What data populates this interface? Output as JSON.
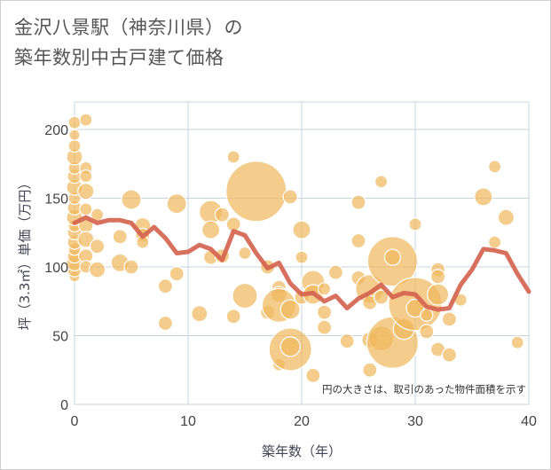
{
  "header": {
    "title_line1": "金沢八景駅（神奈川県）の",
    "title_line2": "築年数別中古戸建て価格"
  },
  "chart_data": {
    "type": "scatter",
    "xlabel": "築年数（年）",
    "ylabel": "坪（3.3㎡）単価（万円）",
    "xlim": [
      0,
      40
    ],
    "ylim": [
      0,
      220
    ],
    "xticks": [
      "0",
      "10",
      "20",
      "30",
      "40"
    ],
    "yticks": [
      "0",
      "50",
      "100",
      "150",
      "200"
    ],
    "annotation": "円の大きさは、取引のあった物件面積を示す",
    "grid": true,
    "colors": {
      "bubble": "#f0b860",
      "line": "#d4604c",
      "grid": "#c8d3dc"
    },
    "bubbles": [
      {
        "x": 0,
        "y": 93,
        "s": 6
      },
      {
        "x": 0,
        "y": 98,
        "s": 8
      },
      {
        "x": 0,
        "y": 103,
        "s": 9
      },
      {
        "x": 0,
        "y": 108,
        "s": 8
      },
      {
        "x": 0,
        "y": 113,
        "s": 7
      },
      {
        "x": 0,
        "y": 118,
        "s": 8
      },
      {
        "x": 0,
        "y": 125,
        "s": 8
      },
      {
        "x": 0,
        "y": 130,
        "s": 7
      },
      {
        "x": 0,
        "y": 136,
        "s": 9
      },
      {
        "x": 0,
        "y": 143,
        "s": 8
      },
      {
        "x": 0,
        "y": 150,
        "s": 7
      },
      {
        "x": 0,
        "y": 158,
        "s": 9
      },
      {
        "x": 0,
        "y": 166,
        "s": 8
      },
      {
        "x": 0,
        "y": 172,
        "s": 7
      },
      {
        "x": 0,
        "y": 180,
        "s": 9
      },
      {
        "x": 0,
        "y": 188,
        "s": 7
      },
      {
        "x": 0,
        "y": 196,
        "s": 6
      },
      {
        "x": 0,
        "y": 205,
        "s": 7
      },
      {
        "x": 1,
        "y": 207,
        "s": 7
      },
      {
        "x": 1,
        "y": 172,
        "s": 7
      },
      {
        "x": 1,
        "y": 166,
        "s": 7
      },
      {
        "x": 1,
        "y": 155,
        "s": 9
      },
      {
        "x": 1,
        "y": 142,
        "s": 7
      },
      {
        "x": 1,
        "y": 130,
        "s": 8
      },
      {
        "x": 1,
        "y": 120,
        "s": 9
      },
      {
        "x": 1,
        "y": 108,
        "s": 8
      },
      {
        "x": 1,
        "y": 100,
        "s": 7
      },
      {
        "x": 2,
        "y": 138,
        "s": 7
      },
      {
        "x": 2,
        "y": 115,
        "s": 8
      },
      {
        "x": 2,
        "y": 98,
        "s": 9
      },
      {
        "x": 4,
        "y": 122,
        "s": 8
      },
      {
        "x": 4,
        "y": 103,
        "s": 10
      },
      {
        "x": 5,
        "y": 149,
        "s": 11
      },
      {
        "x": 5,
        "y": 100,
        "s": 8
      },
      {
        "x": 6,
        "y": 130,
        "s": 9
      },
      {
        "x": 6,
        "y": 123,
        "s": 8
      },
      {
        "x": 6,
        "y": 118,
        "s": 7
      },
      {
        "x": 8,
        "y": 86,
        "s": 8
      },
      {
        "x": 8,
        "y": 59,
        "s": 8
      },
      {
        "x": 9,
        "y": 146,
        "s": 11
      },
      {
        "x": 9,
        "y": 95,
        "s": 8
      },
      {
        "x": 11,
        "y": 66,
        "s": 9
      },
      {
        "x": 12,
        "y": 140,
        "s": 13
      },
      {
        "x": 12,
        "y": 127,
        "s": 10
      },
      {
        "x": 12,
        "y": 107,
        "s": 8
      },
      {
        "x": 13,
        "y": 138,
        "s": 8
      },
      {
        "x": 13,
        "y": 108,
        "s": 8
      },
      {
        "x": 14,
        "y": 180,
        "s": 7
      },
      {
        "x": 14,
        "y": 131,
        "s": 8
      },
      {
        "x": 14,
        "y": 64,
        "s": 8
      },
      {
        "x": 15,
        "y": 110,
        "s": 7
      },
      {
        "x": 15,
        "y": 79,
        "s": 14
      },
      {
        "x": 16,
        "y": 155,
        "s": 34
      },
      {
        "x": 17,
        "y": 100,
        "s": 8
      },
      {
        "x": 17,
        "y": 67,
        "s": 8
      },
      {
        "x": 18,
        "y": 85,
        "s": 8
      },
      {
        "x": 18,
        "y": 80,
        "s": 9
      },
      {
        "x": 18,
        "y": 72,
        "s": 19
      },
      {
        "x": 18,
        "y": 29,
        "s": 7
      },
      {
        "x": 19,
        "y": 151,
        "s": 8
      },
      {
        "x": 19,
        "y": 69,
        "s": 11
      },
      {
        "x": 19,
        "y": 40,
        "s": 24
      },
      {
        "x": 19,
        "y": 42,
        "s": 11
      },
      {
        "x": 20,
        "y": 127,
        "s": 10
      },
      {
        "x": 20,
        "y": 107,
        "s": 7
      },
      {
        "x": 20,
        "y": 78,
        "s": 8
      },
      {
        "x": 21,
        "y": 89,
        "s": 13
      },
      {
        "x": 21,
        "y": 80,
        "s": 11
      },
      {
        "x": 21,
        "y": 21,
        "s": 8
      },
      {
        "x": 22,
        "y": 84,
        "s": 7
      },
      {
        "x": 22,
        "y": 67,
        "s": 8
      },
      {
        "x": 22,
        "y": 56,
        "s": 8
      },
      {
        "x": 23,
        "y": 96,
        "s": 8
      },
      {
        "x": 24,
        "y": 46,
        "s": 8
      },
      {
        "x": 25,
        "y": 147,
        "s": 8
      },
      {
        "x": 25,
        "y": 119,
        "s": 8
      },
      {
        "x": 25,
        "y": 92,
        "s": 8
      },
      {
        "x": 26,
        "y": 84,
        "s": 16
      },
      {
        "x": 26,
        "y": 74,
        "s": 8
      },
      {
        "x": 26,
        "y": 47,
        "s": 9
      },
      {
        "x": 26,
        "y": 25,
        "s": 8
      },
      {
        "x": 27,
        "y": 162,
        "s": 7
      },
      {
        "x": 27,
        "y": 48,
        "s": 14
      },
      {
        "x": 27,
        "y": 78,
        "s": 8
      },
      {
        "x": 28,
        "y": 104,
        "s": 28
      },
      {
        "x": 28,
        "y": 107,
        "s": 9
      },
      {
        "x": 28,
        "y": 45,
        "s": 29
      },
      {
        "x": 29,
        "y": 55,
        "s": 12
      },
      {
        "x": 30,
        "y": 131,
        "s": 7
      },
      {
        "x": 30,
        "y": 73,
        "s": 30
      },
      {
        "x": 30,
        "y": 70,
        "s": 10
      },
      {
        "x": 31,
        "y": 53,
        "s": 8
      },
      {
        "x": 31,
        "y": 65,
        "s": 7
      },
      {
        "x": 32,
        "y": 98,
        "s": 8
      },
      {
        "x": 32,
        "y": 93,
        "s": 8
      },
      {
        "x": 32,
        "y": 80,
        "s": 12
      },
      {
        "x": 32,
        "y": 40,
        "s": 8
      },
      {
        "x": 33,
        "y": 62,
        "s": 8
      },
      {
        "x": 33,
        "y": 36,
        "s": 8
      },
      {
        "x": 34,
        "y": 76,
        "s": 7
      },
      {
        "x": 36,
        "y": 151,
        "s": 10
      },
      {
        "x": 37,
        "y": 173,
        "s": 7
      },
      {
        "x": 37,
        "y": 118,
        "s": 7
      },
      {
        "x": 38,
        "y": 136,
        "s": 9
      },
      {
        "x": 39,
        "y": 45,
        "s": 7
      }
    ],
    "series": [
      {
        "values": [
          [
            0,
            132
          ],
          [
            1,
            136
          ],
          [
            2,
            132
          ],
          [
            3,
            134
          ],
          [
            4,
            134
          ],
          [
            5,
            132
          ],
          [
            6,
            122
          ],
          [
            7,
            129
          ],
          [
            8,
            121
          ],
          [
            9,
            110
          ],
          [
            10,
            111
          ],
          [
            11,
            116
          ],
          [
            12,
            113
          ],
          [
            13,
            105
          ],
          [
            14,
            126
          ],
          [
            15,
            123
          ],
          [
            16,
            110
          ],
          [
            17,
            99
          ],
          [
            18,
            103
          ],
          [
            19,
            88
          ],
          [
            20,
            80
          ],
          [
            21,
            81
          ],
          [
            22,
            75
          ],
          [
            23,
            79
          ],
          [
            24,
            70
          ],
          [
            25,
            77
          ],
          [
            26,
            81
          ],
          [
            27,
            87
          ],
          [
            28,
            78
          ],
          [
            29,
            81
          ],
          [
            30,
            80
          ],
          [
            31,
            71
          ],
          [
            32,
            69
          ],
          [
            33,
            70
          ],
          [
            34,
            87
          ],
          [
            35,
            98
          ],
          [
            36,
            113
          ],
          [
            37,
            112
          ],
          [
            38,
            110
          ],
          [
            39,
            95
          ],
          [
            40,
            82
          ]
        ]
      }
    ]
  }
}
